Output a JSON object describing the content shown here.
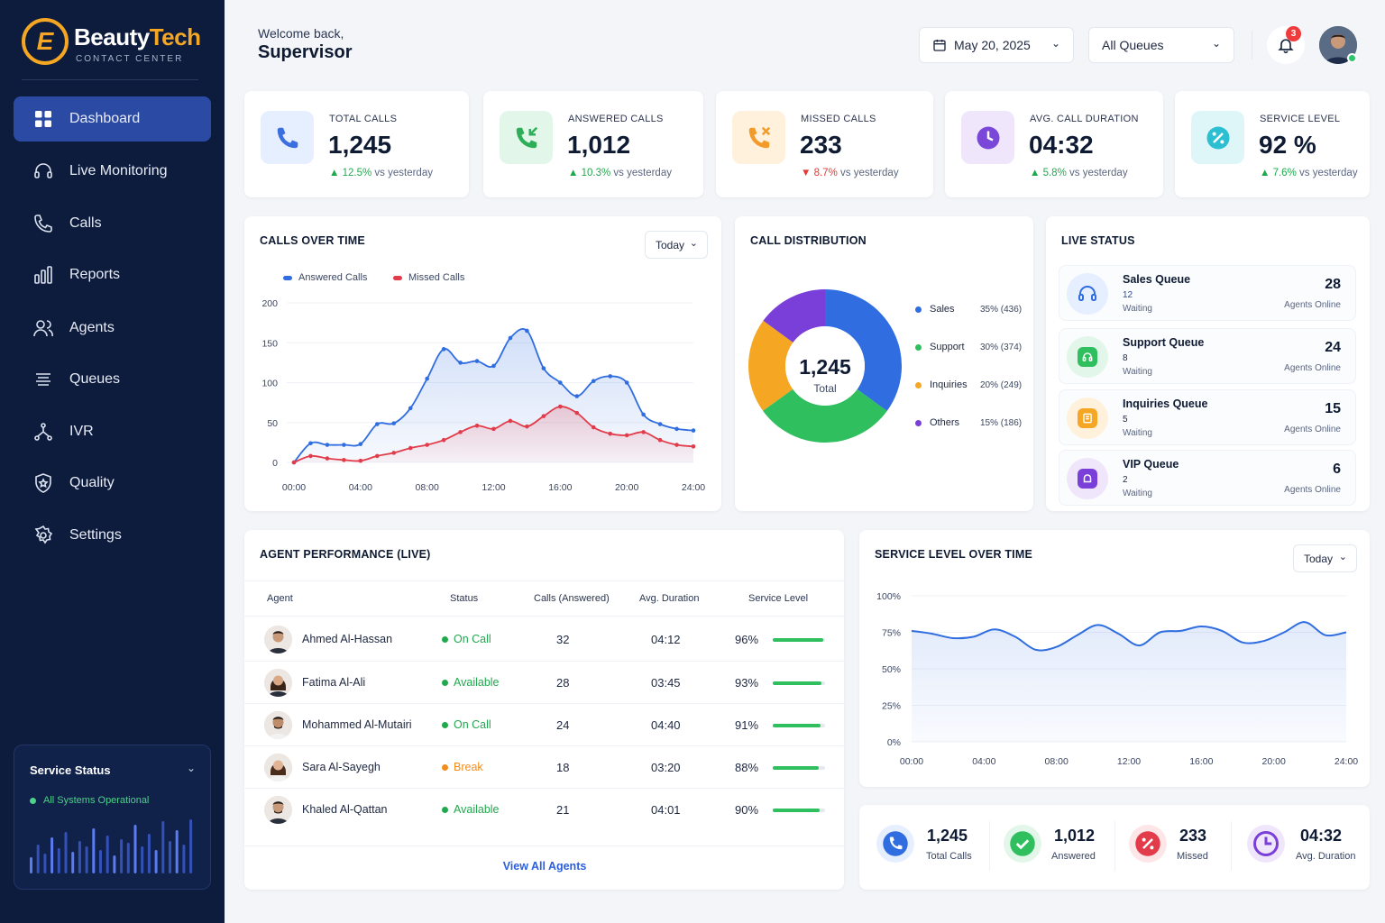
{
  "brand": {
    "name_part1": "Beauty",
    "name_part2": "Tech",
    "subtitle": "CONTACT CENTER",
    "mark": "E"
  },
  "sidebar": {
    "items": [
      {
        "label": "Dashboard",
        "icon": "grid-icon",
        "active": true
      },
      {
        "label": "Live Monitoring",
        "icon": "headset-icon"
      },
      {
        "label": "Calls",
        "icon": "phone-icon"
      },
      {
        "label": "Reports",
        "icon": "bar-chart-icon"
      },
      {
        "label": "Agents",
        "icon": "users-icon"
      },
      {
        "label": "Queues",
        "icon": "layers-icon"
      },
      {
        "label": "IVR",
        "icon": "flow-icon"
      },
      {
        "label": "Quality",
        "icon": "shield-star-icon"
      },
      {
        "label": "Settings",
        "icon": "gear-icon"
      }
    ],
    "service_status": {
      "title": "Service Status",
      "status": "All Systems Operational",
      "status_color": "#4ed18a"
    }
  },
  "header": {
    "welcome": "Welcome back,",
    "user_role": "Supervisor",
    "date": "May 20, 2025",
    "queue_filter": "All Queues",
    "notification_count": "3"
  },
  "kpis": [
    {
      "label": "TOTAL CALLS",
      "value": "1,245",
      "trend": "12.5%",
      "trend_dir": "up",
      "trend_suffix": "vs yesterday",
      "icon": "phone-icon",
      "color": "#3b6fe0"
    },
    {
      "label": "ANSWERED CALLS",
      "value": "1,012",
      "trend": "10.3%",
      "trend_dir": "up",
      "trend_suffix": "vs yesterday",
      "icon": "phone-incoming-icon",
      "color": "#2fae5a"
    },
    {
      "label": "MISSED CALLS",
      "value": "233",
      "trend": "8.7%",
      "trend_dir": "down",
      "trend_suffix": "vs yesterday",
      "icon": "phone-missed-icon",
      "color": "#f29b2b"
    },
    {
      "label": "AVG. CALL DURATION",
      "value": "04:32",
      "trend": "5.8%",
      "trend_dir": "up",
      "trend_suffix": "vs yesterday",
      "icon": "clock-icon",
      "color": "#7b47d9"
    },
    {
      "label": "SERVICE LEVEL",
      "value": "92 %",
      "trend": "7.6%",
      "trend_dir": "up",
      "trend_suffix": "vs yesterday",
      "icon": "percent-icon",
      "color": "#2bbfd1"
    }
  ],
  "calls_over_time": {
    "title": "CALLS OVER TIME",
    "filter": "Today",
    "chart_data": {
      "type": "area",
      "x": [
        "00:00",
        "01:00",
        "02:00",
        "03:00",
        "04:00",
        "05:00",
        "06:00",
        "07:00",
        "08:00",
        "09:00",
        "10:00",
        "11:00",
        "12:00",
        "13:00",
        "14:00",
        "15:00",
        "16:00",
        "17:00",
        "18:00",
        "19:00",
        "20:00",
        "21:00",
        "22:00",
        "23:00",
        "24:00"
      ],
      "x_ticks": [
        "00:00",
        "04:00",
        "08:00",
        "12:00",
        "16:00",
        "20:00",
        "24:00"
      ],
      "y_ticks": [
        0,
        50,
        100,
        150,
        200
      ],
      "ylim": [
        0,
        200
      ],
      "series": [
        {
          "name": "Answered Calls",
          "color": "#2f6de0",
          "values": [
            0,
            24,
            22,
            22,
            23,
            48,
            49,
            68,
            105,
            142,
            125,
            127,
            121,
            156,
            165,
            118,
            100,
            83,
            102,
            108,
            100,
            60,
            48,
            42,
            40
          ]
        },
        {
          "name": "Missed Calls",
          "color": "#e23c4b",
          "values": [
            0,
            8,
            5,
            3,
            2,
            8,
            12,
            18,
            22,
            28,
            38,
            46,
            42,
            52,
            45,
            58,
            70,
            62,
            44,
            36,
            34,
            38,
            28,
            22,
            20
          ]
        }
      ]
    }
  },
  "call_distribution": {
    "title": "CALL DISTRIBUTION",
    "center_value": "1,245",
    "center_label": "Total",
    "chart_data": {
      "type": "pie",
      "slices": [
        {
          "label": "Sales",
          "value": 436,
          "percent": 35,
          "display": "35% (436)",
          "color": "#2f6de0"
        },
        {
          "label": "Support",
          "value": 374,
          "percent": 30,
          "display": "30% (374)",
          "color": "#2fbf5f"
        },
        {
          "label": "Inquiries",
          "value": 249,
          "percent": 20,
          "display": "20% (249)",
          "color": "#f5a623"
        },
        {
          "label": "Others",
          "value": 186,
          "percent": 15,
          "display": "15% (186)",
          "color": "#7b3fd9"
        }
      ]
    }
  },
  "live_status": {
    "title": "LIVE STATUS",
    "queues": [
      {
        "name": "Sales Queue",
        "waiting": "12",
        "waiting_label": "Waiting",
        "agents": "28",
        "agents_label": "Agents Online",
        "color": "#2f6de0",
        "bg": "#e6efff",
        "icon": "headset-icon"
      },
      {
        "name": "Support Queue",
        "waiting": "8",
        "waiting_label": "Waiting",
        "agents": "24",
        "agents_label": "Agents Online",
        "color": "#2fbf5f",
        "bg": "#e3f6ea",
        "icon": "support-icon"
      },
      {
        "name": "Inquiries Queue",
        "waiting": "5",
        "waiting_label": "Waiting",
        "agents": "15",
        "agents_label": "Agents Online",
        "color": "#f5a623",
        "bg": "#fff1dc",
        "icon": "inquiry-icon"
      },
      {
        "name": "VIP Queue",
        "waiting": "2",
        "waiting_label": "Waiting",
        "agents": "6",
        "agents_label": "Agents Online",
        "color": "#7b3fd9",
        "bg": "#efe6fb",
        "icon": "vip-icon"
      }
    ]
  },
  "agent_performance": {
    "title": "AGENT PERFORMANCE (LIVE)",
    "columns": [
      "Agent",
      "Status",
      "Calls (Answered)",
      "Avg. Duration",
      "Service Level"
    ],
    "rows": [
      {
        "name": "Ahmed Al-Hassan",
        "status": "On Call",
        "status_color": "#21a84e",
        "calls": "32",
        "duration": "04:12",
        "service_level": "96%",
        "sl_value": 96,
        "gender": "m"
      },
      {
        "name": "Fatima Al-Ali",
        "status": "Available",
        "status_color": "#21a84e",
        "calls": "28",
        "duration": "03:45",
        "service_level": "93%",
        "sl_value": 93,
        "gender": "f"
      },
      {
        "name": "Mohammed Al-Mutairi",
        "status": "On Call",
        "status_color": "#21a84e",
        "calls": "24",
        "duration": "04:40",
        "service_level": "91%",
        "sl_value": 91,
        "gender": "m"
      },
      {
        "name": "Sara Al-Sayegh",
        "status": "Break",
        "status_color": "#f28c1e",
        "calls": "18",
        "duration": "03:20",
        "service_level": "88%",
        "sl_value": 88,
        "gender": "f"
      },
      {
        "name": "Khaled Al-Qattan",
        "status": "Available",
        "status_color": "#21a84e",
        "calls": "21",
        "duration": "04:01",
        "service_level": "90%",
        "sl_value": 90,
        "gender": "m"
      }
    ],
    "view_all": "View All Agents"
  },
  "service_level_over_time": {
    "title": "SERVICE LEVEL OVER TIME",
    "filter": "Today",
    "chart_data": {
      "type": "area",
      "x_ticks": [
        "00:00",
        "04:00",
        "08:00",
        "12:00",
        "16:00",
        "20:00",
        "24:00"
      ],
      "y_ticks": [
        "0%",
        "25%",
        "50%",
        "75%",
        "100%"
      ],
      "ylim": [
        0,
        100
      ],
      "series": [
        {
          "color": "#2f6de0",
          "values": [
            76,
            74,
            71,
            72,
            77,
            72,
            63,
            65,
            73,
            80,
            74,
            66,
            75,
            76,
            79,
            76,
            68,
            69,
            75,
            82,
            73,
            75
          ]
        }
      ]
    }
  },
  "summary": [
    {
      "value": "1,245",
      "label": "Total Calls",
      "icon": "phone-icon",
      "color": "#2f6de0",
      "bg": "#e6efff"
    },
    {
      "value": "1,012",
      "label": "Answered",
      "icon": "check-icon",
      "color": "#2fbf5f",
      "bg": "#e3f6ea"
    },
    {
      "value": "233",
      "label": "Missed",
      "icon": "percent-icon",
      "color": "#e23c4b",
      "bg": "#fde6e8"
    },
    {
      "value": "04:32",
      "label": "Avg. Duration",
      "icon": "clock-icon",
      "color": "#7b3fd9",
      "bg": "#efe6fb"
    }
  ]
}
